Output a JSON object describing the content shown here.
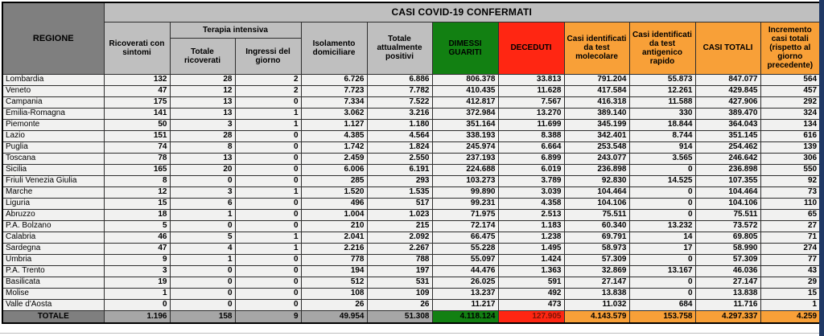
{
  "title": "CASI COVID-19 CONFERMATI",
  "headers": {
    "regione": "REGIONE",
    "ricoverati": "Ricoverati con sintomi",
    "terapia_intensiva": "Terapia intensiva",
    "ti_totale": "Totale ricoverati",
    "ti_ingressi": "Ingressi del giorno",
    "isolamento": "Isolamento domiciliare",
    "positivi": "Totale attualmente positivi",
    "guariti": "DIMESSI GUARITI",
    "deceduti": "DECEDUTI",
    "molecolare": "Casi identificati da test molecolare",
    "antigenico": "Casi identificati da test antigenico rapido",
    "casi_totali": "CASI TOTALI",
    "incremento": "Incremento casi totali (rispetto al giorno precedente)"
  },
  "colors": {
    "header_dark_gray": "#7f7f7f",
    "header_light_gray": "#bfbfbf",
    "totale_gray": "#a6a6a6",
    "green": "#128012",
    "red": "#ff2612",
    "red_text": "#7b1507",
    "orange": "#f8a038",
    "row_bg": "#f1f1f0",
    "edge_strip_navy": "#1f3864"
  },
  "chart_data": {
    "type": "table",
    "title": "CASI COVID-19 CONFERMATI",
    "columns": [
      "REGIONE",
      "Ricoverati con sintomi",
      "Terapia intensiva - Totale ricoverati",
      "Terapia intensiva - Ingressi del giorno",
      "Isolamento domiciliare",
      "Totale attualmente positivi",
      "DIMESSI GUARITI",
      "DECEDUTI",
      "Casi identificati da test molecolare",
      "Casi identificati da test antigenico rapido",
      "CASI TOTALI",
      "Incremento casi totali (rispetto al giorno precedente)"
    ],
    "rows": [
      {
        "region": "Lombardia",
        "values": [
          "132",
          "28",
          "2",
          "6.726",
          "6.886",
          "806.378",
          "33.813",
          "791.204",
          "55.873",
          "847.077",
          "564"
        ]
      },
      {
        "region": "Veneto",
        "values": [
          "47",
          "12",
          "2",
          "7.723",
          "7.782",
          "410.435",
          "11.628",
          "417.584",
          "12.261",
          "429.845",
          "457"
        ]
      },
      {
        "region": "Campania",
        "values": [
          "175",
          "13",
          "0",
          "7.334",
          "7.522",
          "412.817",
          "7.567",
          "416.318",
          "11.588",
          "427.906",
          "292"
        ]
      },
      {
        "region": "Emilia-Romagna",
        "values": [
          "141",
          "13",
          "1",
          "3.062",
          "3.216",
          "372.984",
          "13.270",
          "389.140",
          "330",
          "389.470",
          "324"
        ]
      },
      {
        "region": "Piemonte",
        "values": [
          "50",
          "3",
          "1",
          "1.127",
          "1.180",
          "351.164",
          "11.699",
          "345.199",
          "18.844",
          "364.043",
          "134"
        ]
      },
      {
        "region": "Lazio",
        "values": [
          "151",
          "28",
          "0",
          "4.385",
          "4.564",
          "338.193",
          "8.388",
          "342.401",
          "8.744",
          "351.145",
          "616"
        ]
      },
      {
        "region": "Puglia",
        "values": [
          "74",
          "8",
          "0",
          "1.742",
          "1.824",
          "245.974",
          "6.664",
          "253.548",
          "914",
          "254.462",
          "139"
        ]
      },
      {
        "region": "Toscana",
        "values": [
          "78",
          "13",
          "0",
          "2.459",
          "2.550",
          "237.193",
          "6.899",
          "243.077",
          "3.565",
          "246.642",
          "306"
        ]
      },
      {
        "region": "Sicilia",
        "values": [
          "165",
          "20",
          "0",
          "6.006",
          "6.191",
          "224.688",
          "6.019",
          "236.898",
          "0",
          "236.898",
          "550"
        ]
      },
      {
        "region": "Friuli Venezia Giulia",
        "values": [
          "8",
          "0",
          "0",
          "285",
          "293",
          "103.273",
          "3.789",
          "92.830",
          "14.525",
          "107.355",
          "92"
        ]
      },
      {
        "region": "Marche",
        "values": [
          "12",
          "3",
          "1",
          "1.520",
          "1.535",
          "99.890",
          "3.039",
          "104.464",
          "0",
          "104.464",
          "73"
        ]
      },
      {
        "region": "Liguria",
        "values": [
          "15",
          "6",
          "0",
          "496",
          "517",
          "99.231",
          "4.358",
          "104.106",
          "0",
          "104.106",
          "110"
        ]
      },
      {
        "region": "Abruzzo",
        "values": [
          "18",
          "1",
          "0",
          "1.004",
          "1.023",
          "71.975",
          "2.513",
          "75.511",
          "0",
          "75.511",
          "65"
        ]
      },
      {
        "region": "P.A. Bolzano",
        "values": [
          "5",
          "0",
          "0",
          "210",
          "215",
          "72.174",
          "1.183",
          "60.340",
          "13.232",
          "73.572",
          "27"
        ]
      },
      {
        "region": "Calabria",
        "values": [
          "46",
          "5",
          "1",
          "2.041",
          "2.092",
          "66.475",
          "1.238",
          "69.791",
          "14",
          "69.805",
          "71"
        ]
      },
      {
        "region": "Sardegna",
        "values": [
          "47",
          "4",
          "1",
          "2.216",
          "2.267",
          "55.228",
          "1.495",
          "58.973",
          "17",
          "58.990",
          "274"
        ]
      },
      {
        "region": "Umbria",
        "values": [
          "9",
          "1",
          "0",
          "778",
          "788",
          "55.097",
          "1.424",
          "57.309",
          "0",
          "57.309",
          "77"
        ]
      },
      {
        "region": "P.A. Trento",
        "values": [
          "3",
          "0",
          "0",
          "194",
          "197",
          "44.476",
          "1.363",
          "32.869",
          "13.167",
          "46.036",
          "43"
        ]
      },
      {
        "region": "Basilicata",
        "values": [
          "19",
          "0",
          "0",
          "512",
          "531",
          "26.025",
          "591",
          "27.147",
          "0",
          "27.147",
          "29"
        ]
      },
      {
        "region": "Molise",
        "values": [
          "1",
          "0",
          "0",
          "108",
          "109",
          "13.237",
          "492",
          "13.838",
          "0",
          "13.838",
          "15"
        ]
      },
      {
        "region": "Valle d'Aosta",
        "values": [
          "0",
          "0",
          "0",
          "26",
          "26",
          "11.217",
          "473",
          "11.032",
          "684",
          "11.716",
          "1"
        ]
      }
    ],
    "totale": {
      "region": "TOTALE",
      "values": [
        "1.196",
        "158",
        "9",
        "49.954",
        "51.308",
        "4.118.124",
        "127.905",
        "4.143.579",
        "153.758",
        "4.297.337",
        "4.259"
      ]
    }
  }
}
